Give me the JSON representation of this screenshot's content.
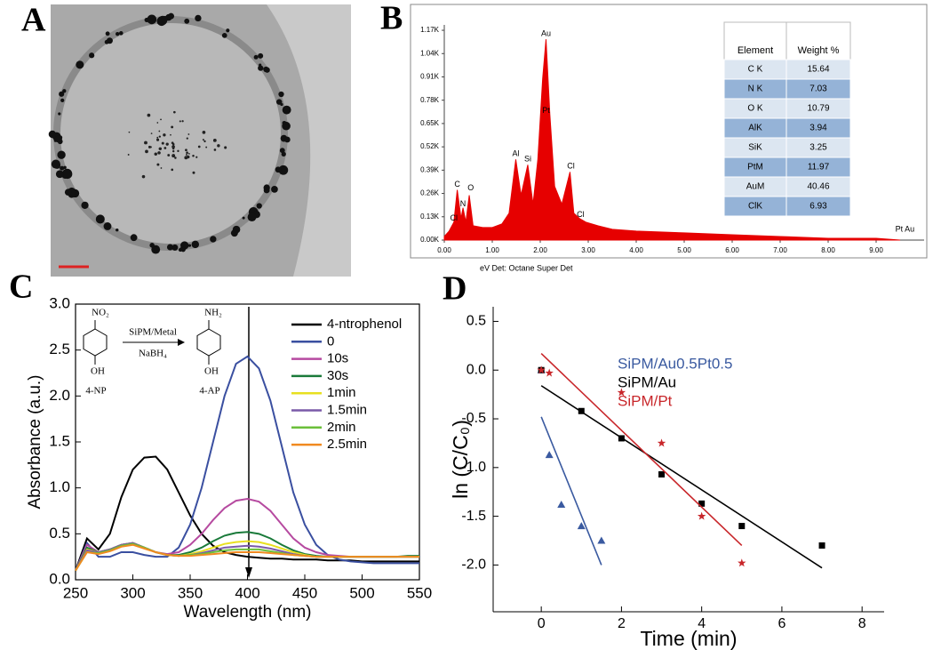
{
  "panel_labels": [
    "A",
    "B",
    "C",
    "D"
  ],
  "chart_data": [
    {
      "type": "area",
      "color": "#e60000",
      "footer": "eV Det: Octane Super Det",
      "x": [
        0,
        0.1,
        0.2,
        0.27,
        0.35,
        0.39,
        0.45,
        0.52,
        0.6,
        0.8,
        1.0,
        1.2,
        1.35,
        1.49,
        1.6,
        1.74,
        1.85,
        1.95,
        2.05,
        2.12,
        2.2,
        2.3,
        2.45,
        2.62,
        2.7,
        2.82,
        2.95,
        3.2,
        3.5,
        4,
        5,
        6,
        7,
        8,
        9,
        9.5
      ],
      "values": [
        0.02,
        0.05,
        0.1,
        0.28,
        0.12,
        0.18,
        0.1,
        0.25,
        0.08,
        0.07,
        0.07,
        0.09,
        0.15,
        0.45,
        0.25,
        0.42,
        0.2,
        0.45,
        0.9,
        1.12,
        0.7,
        0.3,
        0.2,
        0.38,
        0.15,
        0.12,
        0.1,
        0.08,
        0.06,
        0.05,
        0.04,
        0.03,
        0.02,
        0.01,
        0.01,
        0
      ],
      "xlim": [
        0,
        10
      ],
      "xticks": [
        {
          "value": 0,
          "label": "0.00"
        },
        {
          "value": 1,
          "label": "1.00"
        },
        {
          "value": 2,
          "label": "2.00"
        },
        {
          "value": 3,
          "label": "3.00"
        },
        {
          "value": 4,
          "label": "4.00"
        },
        {
          "value": 5,
          "label": "5.00"
        },
        {
          "value": 6,
          "label": "6.00"
        },
        {
          "value": 7,
          "label": "7.00"
        },
        {
          "value": 8,
          "label": "8.00"
        },
        {
          "value": 9,
          "label": "9.00"
        }
      ],
      "ylim": [
        0,
        1.2
      ],
      "yticks": [
        {
          "value": 0,
          "label": "0.00K"
        },
        {
          "value": 0.13,
          "label": "0.13K"
        },
        {
          "value": 0.26,
          "label": "0.26K"
        },
        {
          "value": 0.39,
          "label": "0.39K"
        },
        {
          "value": 0.52,
          "label": "0.52K"
        },
        {
          "value": 0.65,
          "label": "0.65K"
        },
        {
          "value": 0.78,
          "label": "0.78K"
        },
        {
          "value": 0.91,
          "label": "0.91K"
        },
        {
          "value": 1.04,
          "label": "1.04K"
        },
        {
          "value": 1.17,
          "label": "1.17K"
        }
      ],
      "peak_labels": [
        {
          "text": "Cl",
          "x": 0.2,
          "y": 0.12
        },
        {
          "text": "C",
          "x": 0.27,
          "y": 0.31
        },
        {
          "text": "N",
          "x": 0.39,
          "y": 0.2
        },
        {
          "text": "O",
          "x": 0.55,
          "y": 0.29
        },
        {
          "text": "Al",
          "x": 1.49,
          "y": 0.48
        },
        {
          "text": "Si",
          "x": 1.74,
          "y": 0.45
        },
        {
          "text": "Au",
          "x": 2.12,
          "y": 1.15
        },
        {
          "text": "Pt",
          "x": 2.12,
          "y": 0.72
        },
        {
          "text": "Cl",
          "x": 2.64,
          "y": 0.41
        },
        {
          "text": "Cl",
          "x": 2.84,
          "y": 0.14
        },
        {
          "text": "Pt  Au",
          "x": 9.6,
          "y": 0.06
        }
      ],
      "table": {
        "header": [
          "Element",
          "Weight %"
        ],
        "rows": [
          [
            "C K",
            "15.64"
          ],
          [
            "N K",
            "7.03"
          ],
          [
            "O K",
            "10.79"
          ],
          [
            "AlK",
            "3.94"
          ],
          [
            "SiK",
            "3.25"
          ],
          [
            "PtM",
            "11.97"
          ],
          [
            "AuM",
            "40.46"
          ],
          [
            "ClK",
            "6.93"
          ]
        ]
      }
    },
    {
      "type": "line",
      "x_label": "Wavelength (nm)",
      "y_label": "Absorbance (a.u.)",
      "xlim": [
        250,
        550
      ],
      "xticks": [
        250,
        300,
        350,
        400,
        450,
        500,
        550
      ],
      "ylim": [
        0,
        3
      ],
      "yticks": [
        {
          "value": 0,
          "label": "0.0"
        },
        0.5,
        {
          "value": 1,
          "label": "1.0"
        },
        1.5,
        {
          "value": 2,
          "label": "2.0"
        },
        2.5,
        {
          "value": 3,
          "label": "3.0"
        }
      ],
      "scheme": {
        "reactant_group": "NO₂",
        "reactant_base": "OH",
        "reactant": "4-NP",
        "catalyst": "SiPM/Metal",
        "reagent": "NaBH₄",
        "product_group": "NH₂",
        "product_base": "OH",
        "product": "4-AP"
      },
      "x": [
        250,
        260,
        270,
        280,
        290,
        300,
        310,
        320,
        330,
        340,
        350,
        360,
        370,
        380,
        390,
        400,
        410,
        420,
        430,
        440,
        450,
        460,
        470,
        480,
        490,
        500,
        510,
        520,
        530,
        540,
        550
      ],
      "series": [
        {
          "name": "4-ntrophenol",
          "color": "#000000",
          "values": [
            0.1,
            0.45,
            0.33,
            0.5,
            0.9,
            1.2,
            1.33,
            1.34,
            1.2,
            0.95,
            0.7,
            0.5,
            0.37,
            0.3,
            0.27,
            0.25,
            0.24,
            0.23,
            0.23,
            0.22,
            0.22,
            0.22,
            0.21,
            0.21,
            0.21,
            0.2,
            0.2,
            0.2,
            0.2,
            0.2,
            0.2
          ]
        },
        {
          "name": "0",
          "color": "#3a4fa0",
          "values": [
            0.1,
            0.4,
            0.25,
            0.25,
            0.3,
            0.3,
            0.27,
            0.25,
            0.25,
            0.35,
            0.6,
            1.0,
            1.5,
            2.0,
            2.35,
            2.43,
            2.3,
            1.95,
            1.45,
            0.95,
            0.6,
            0.38,
            0.27,
            0.22,
            0.2,
            0.19,
            0.18,
            0.18,
            0.18,
            0.18,
            0.18
          ]
        },
        {
          "name": "10s",
          "color": "#b64aa0",
          "values": [
            0.1,
            0.38,
            0.3,
            0.33,
            0.38,
            0.4,
            0.35,
            0.3,
            0.28,
            0.3,
            0.38,
            0.5,
            0.65,
            0.78,
            0.86,
            0.88,
            0.85,
            0.75,
            0.6,
            0.45,
            0.35,
            0.3,
            0.27,
            0.26,
            0.25,
            0.25,
            0.25,
            0.25,
            0.25,
            0.25,
            0.25
          ]
        },
        {
          "name": "30s",
          "color": "#1a7a3a",
          "values": [
            0.1,
            0.35,
            0.3,
            0.33,
            0.38,
            0.4,
            0.35,
            0.3,
            0.27,
            0.27,
            0.3,
            0.35,
            0.42,
            0.48,
            0.51,
            0.52,
            0.5,
            0.45,
            0.38,
            0.32,
            0.28,
            0.26,
            0.25,
            0.25,
            0.25,
            0.25,
            0.25,
            0.25,
            0.25,
            0.26,
            0.26
          ]
        },
        {
          "name": "1min",
          "color": "#e8e020",
          "values": [
            0.1,
            0.33,
            0.3,
            0.33,
            0.38,
            0.4,
            0.35,
            0.3,
            0.27,
            0.26,
            0.28,
            0.31,
            0.35,
            0.39,
            0.41,
            0.42,
            0.41,
            0.38,
            0.34,
            0.3,
            0.27,
            0.25,
            0.25,
            0.25,
            0.25,
            0.25,
            0.25,
            0.25,
            0.25,
            0.25,
            0.25
          ]
        },
        {
          "name": "1.5min",
          "color": "#7a5aa8",
          "values": [
            0.1,
            0.32,
            0.3,
            0.33,
            0.38,
            0.4,
            0.35,
            0.3,
            0.27,
            0.26,
            0.27,
            0.29,
            0.32,
            0.35,
            0.36,
            0.37,
            0.36,
            0.34,
            0.31,
            0.28,
            0.26,
            0.25,
            0.25,
            0.25,
            0.25,
            0.25,
            0.25,
            0.25,
            0.25,
            0.25,
            0.25
          ]
        },
        {
          "name": "2min",
          "color": "#6bbf3a",
          "values": [
            0.1,
            0.3,
            0.29,
            0.32,
            0.37,
            0.39,
            0.35,
            0.3,
            0.27,
            0.26,
            0.27,
            0.28,
            0.3,
            0.32,
            0.33,
            0.33,
            0.33,
            0.31,
            0.29,
            0.27,
            0.26,
            0.25,
            0.25,
            0.25,
            0.25,
            0.25,
            0.25,
            0.25,
            0.25,
            0.25,
            0.25
          ]
        },
        {
          "name": "2.5min",
          "color": "#f08a20",
          "values": [
            0.1,
            0.3,
            0.28,
            0.31,
            0.36,
            0.38,
            0.34,
            0.3,
            0.27,
            0.26,
            0.26,
            0.27,
            0.28,
            0.29,
            0.3,
            0.3,
            0.3,
            0.29,
            0.28,
            0.27,
            0.26,
            0.25,
            0.25,
            0.25,
            0.25,
            0.25,
            0.25,
            0.25,
            0.25,
            0.25,
            0.25
          ]
        }
      ]
    },
    {
      "type": "scatter",
      "x_label": "Time (min)",
      "y_label": "ln (C/C₀)",
      "xlim": [
        -1.2,
        8.55
      ],
      "xticks": [
        0,
        2,
        4,
        6,
        8
      ],
      "ylim": [
        -2.48,
        0.65
      ],
      "yticks": [
        0.5,
        {
          "value": 0,
          "label": "0.0"
        },
        -0.5,
        {
          "value": -1,
          "label": "-1.0"
        },
        -1.5,
        {
          "value": -2,
          "label": "-2.0"
        }
      ],
      "series": [
        {
          "name": "SiPM/Au0.5Pt0.5",
          "color": "#3a5aa0",
          "marker": "triangle",
          "x": [
            0,
            0.2,
            0.5,
            1,
            1.5
          ],
          "values": [
            0,
            -0.87,
            -1.38,
            -1.6,
            -1.75
          ],
          "fit": {
            "x": [
              0,
              1.5
            ],
            "values": [
              -0.48,
              -2.0
            ]
          }
        },
        {
          "name": "SiPM/Au",
          "color": "#000000",
          "marker": "square",
          "x": [
            0,
            1,
            2,
            3,
            4,
            5,
            7
          ],
          "values": [
            0,
            -0.42,
            -0.7,
            -1.07,
            -1.37,
            -1.6,
            -1.8
          ],
          "fit": {
            "x": [
              0,
              7
            ],
            "values": [
              -0.16,
              -2.03
            ]
          }
        },
        {
          "name": "SiPM/Pt",
          "color": "#c8262a",
          "marker": "star",
          "x": [
            0,
            0.2,
            2,
            3,
            4,
            5
          ],
          "values": [
            0,
            -0.03,
            -0.23,
            -0.75,
            -1.5,
            -1.98
          ],
          "fit": {
            "x": [
              0,
              5
            ],
            "values": [
              0.17,
              -1.8
            ]
          }
        }
      ]
    }
  ]
}
